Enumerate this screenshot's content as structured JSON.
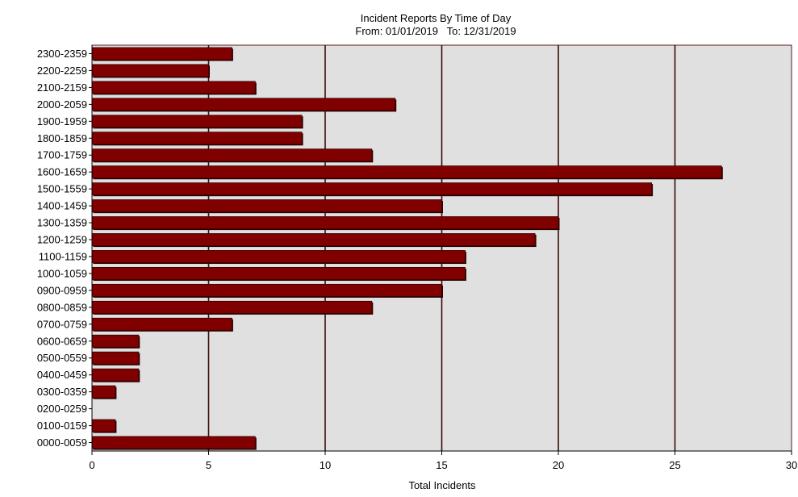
{
  "chart_data": {
    "type": "bar",
    "orientation": "horizontal",
    "title": "Incident Reports By Time of Day",
    "subtitle": "From: 01/01/2019   To: 12/31/2019",
    "xlabel": "Total Incidents",
    "ylabel": "",
    "xlim": [
      0,
      30
    ],
    "xticks": [
      0,
      5,
      10,
      15,
      20,
      25,
      30
    ],
    "grid": true,
    "legend": "none",
    "categories": [
      "0000-0059",
      "0100-0159",
      "0200-0259",
      "0300-0359",
      "0400-0459",
      "0500-0559",
      "0600-0659",
      "0700-0759",
      "0800-0859",
      "0900-0959",
      "1000-1059",
      "1100-1159",
      "1200-1259",
      "1300-1359",
      "1400-1459",
      "1500-1559",
      "1600-1659",
      "1700-1759",
      "1800-1859",
      "1900-1959",
      "2000-2059",
      "2100-2159",
      "2200-2259",
      "2300-2359"
    ],
    "values": [
      7,
      1,
      0,
      1,
      2,
      2,
      2,
      6,
      12,
      15,
      16,
      16,
      19,
      20,
      15,
      24,
      27,
      12,
      9,
      9,
      13,
      7,
      5,
      6
    ],
    "colors": {
      "bar": "#800000",
      "plot_bg": "#e0e0e0",
      "grid": "#3c0a0a",
      "axis": "#5a1a1a"
    }
  }
}
